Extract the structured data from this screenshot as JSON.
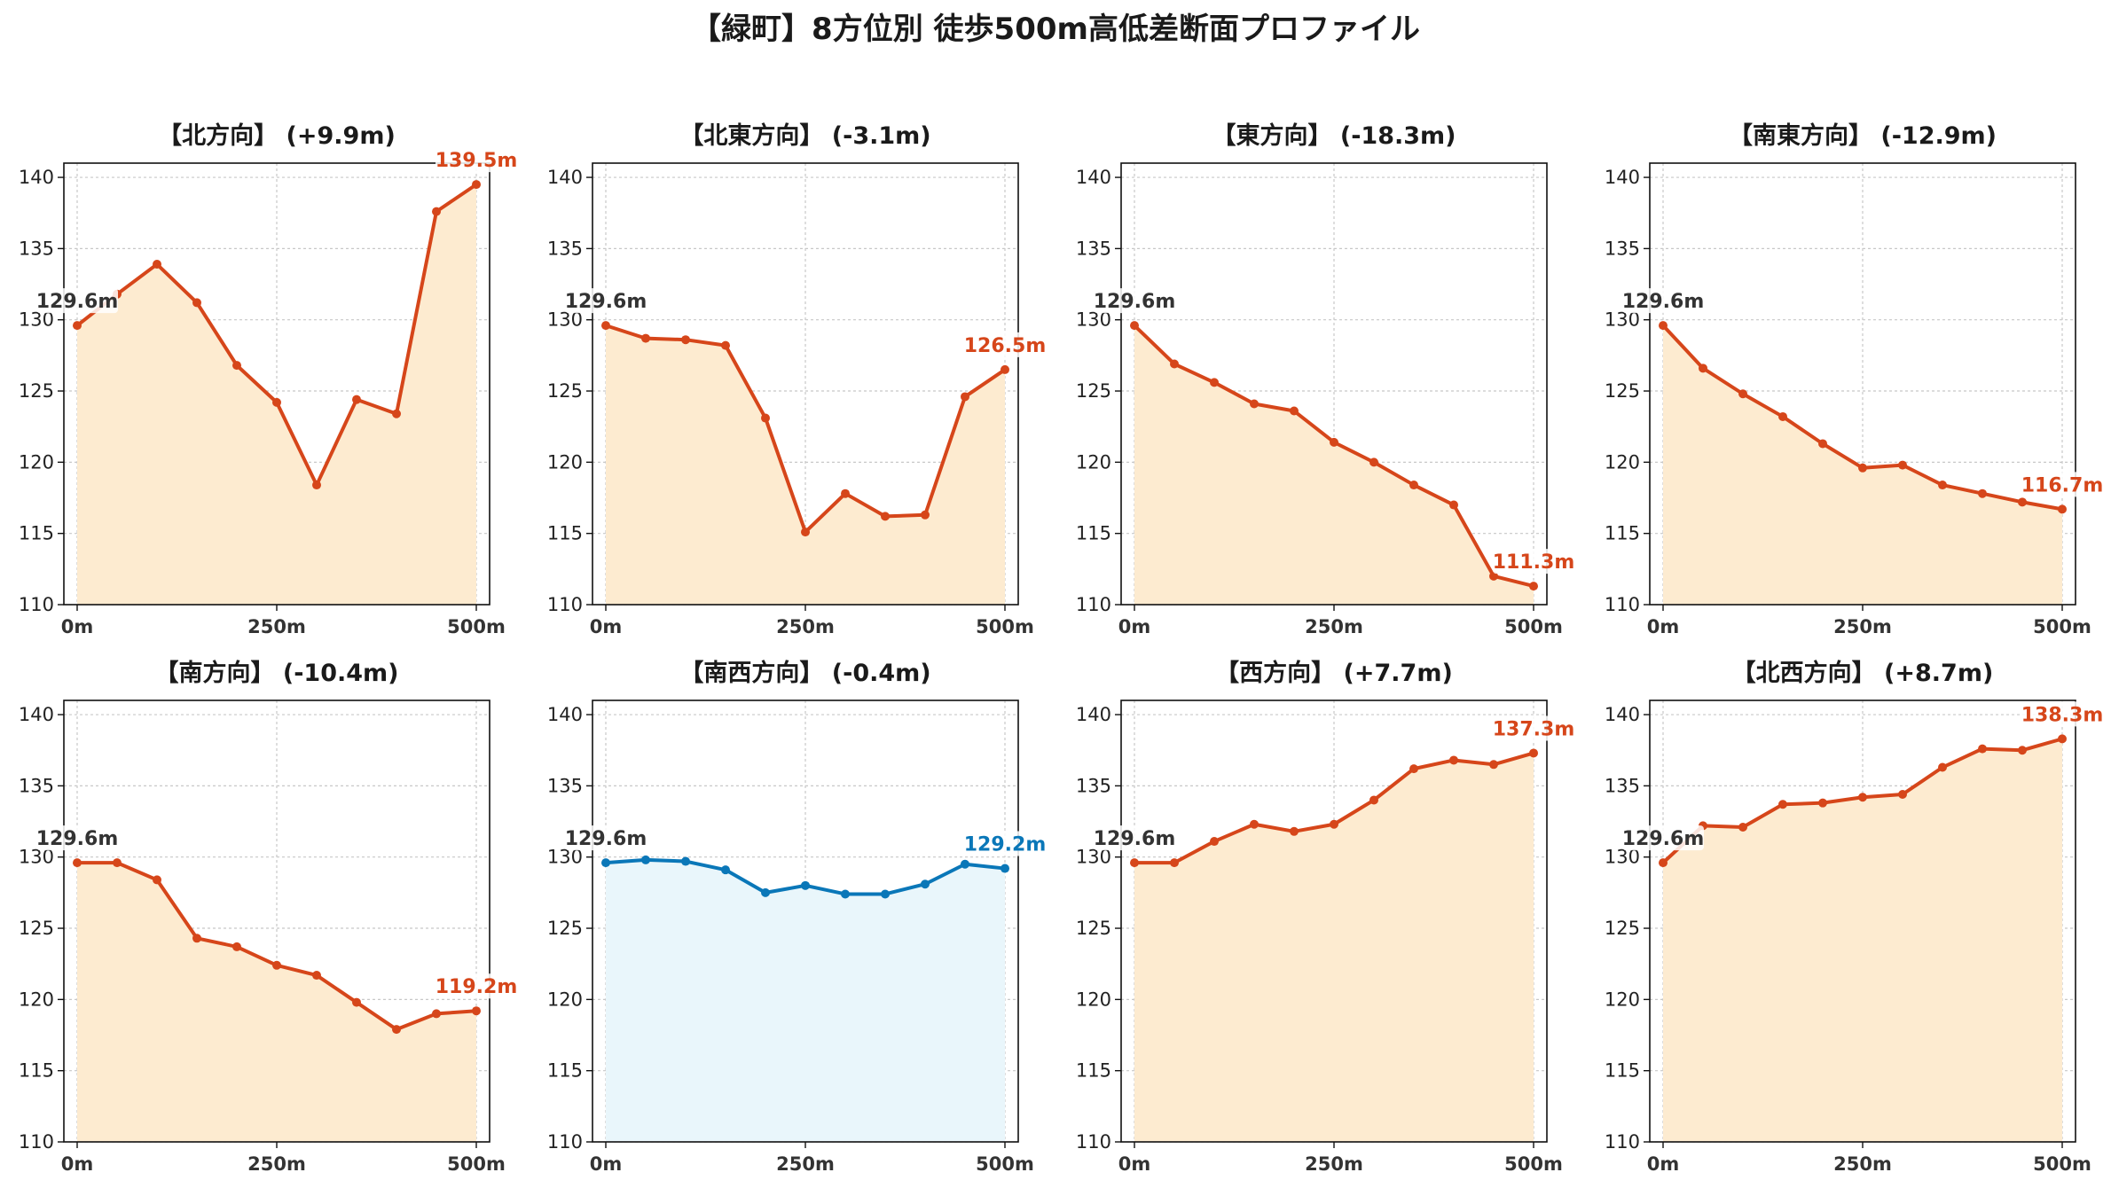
{
  "title": "【緑町】8方位別 徒歩500m高低差断面プロファイル",
  "colors": {
    "line_default": "#d6461a",
    "fill_default": "#fdebd0",
    "line_flat": "#0a77b8",
    "fill_flat": "#e9f6fb",
    "start_label": "#333333",
    "grid": "#c8c8c8"
  },
  "chart_data": [
    {
      "type": "line",
      "title": "【北方向】 (+9.9m)",
      "x": [
        0,
        50,
        100,
        150,
        200,
        250,
        300,
        350,
        400,
        450,
        500
      ],
      "values": [
        129.6,
        131.8,
        133.9,
        131.2,
        126.8,
        124.2,
        118.4,
        124.4,
        123.4,
        137.6,
        139.5
      ],
      "xticks": [
        "0m",
        "250m",
        "500m"
      ],
      "yticks": [
        "110",
        "115",
        "120",
        "125",
        "130",
        "135",
        "140"
      ],
      "ylim": [
        110,
        141
      ],
      "start_label": "129.6m",
      "end_label": "139.5m",
      "grid": true,
      "style": "default"
    },
    {
      "type": "line",
      "title": "【北東方向】 (-3.1m)",
      "x": [
        0,
        50,
        100,
        150,
        200,
        250,
        300,
        350,
        400,
        450,
        500
      ],
      "values": [
        129.6,
        128.7,
        128.6,
        128.2,
        123.1,
        115.1,
        117.8,
        116.2,
        116.3,
        124.6,
        126.5
      ],
      "xticks": [
        "0m",
        "250m",
        "500m"
      ],
      "yticks": [
        "110",
        "115",
        "120",
        "125",
        "130",
        "135",
        "140"
      ],
      "ylim": [
        110,
        141
      ],
      "start_label": "129.6m",
      "end_label": "126.5m",
      "grid": true,
      "style": "default"
    },
    {
      "type": "line",
      "title": "【東方向】 (-18.3m)",
      "x": [
        0,
        50,
        100,
        150,
        200,
        250,
        300,
        350,
        400,
        450,
        500
      ],
      "values": [
        129.6,
        126.9,
        125.6,
        124.1,
        123.6,
        121.4,
        120.0,
        118.4,
        117.0,
        112.0,
        111.3
      ],
      "xticks": [
        "0m",
        "250m",
        "500m"
      ],
      "yticks": [
        "110",
        "115",
        "120",
        "125",
        "130",
        "135",
        "140"
      ],
      "ylim": [
        110,
        141
      ],
      "start_label": "129.6m",
      "end_label": "111.3m",
      "grid": true,
      "style": "default"
    },
    {
      "type": "line",
      "title": "【南東方向】 (-12.9m)",
      "x": [
        0,
        50,
        100,
        150,
        200,
        250,
        300,
        350,
        400,
        450,
        500
      ],
      "values": [
        129.6,
        126.6,
        124.8,
        123.2,
        121.3,
        119.6,
        119.8,
        118.4,
        117.8,
        117.2,
        116.7
      ],
      "xticks": [
        "0m",
        "250m",
        "500m"
      ],
      "yticks": [
        "110",
        "115",
        "120",
        "125",
        "130",
        "135",
        "140"
      ],
      "ylim": [
        110,
        141
      ],
      "start_label": "129.6m",
      "end_label": "116.7m",
      "grid": true,
      "style": "default"
    },
    {
      "type": "line",
      "title": "【南方向】 (-10.4m)",
      "x": [
        0,
        50,
        100,
        150,
        200,
        250,
        300,
        350,
        400,
        450,
        500
      ],
      "values": [
        129.6,
        129.6,
        128.4,
        124.3,
        123.7,
        122.4,
        121.7,
        119.8,
        117.9,
        119.0,
        119.2
      ],
      "xticks": [
        "0m",
        "250m",
        "500m"
      ],
      "yticks": [
        "110",
        "115",
        "120",
        "125",
        "130",
        "135",
        "140"
      ],
      "ylim": [
        110,
        141
      ],
      "start_label": "129.6m",
      "end_label": "119.2m",
      "grid": true,
      "style": "default"
    },
    {
      "type": "line",
      "title": "【南西方向】 (-0.4m)",
      "x": [
        0,
        50,
        100,
        150,
        200,
        250,
        300,
        350,
        400,
        450,
        500
      ],
      "values": [
        129.6,
        129.8,
        129.7,
        129.1,
        127.5,
        128.0,
        127.4,
        127.4,
        128.1,
        129.5,
        129.2
      ],
      "xticks": [
        "0m",
        "250m",
        "500m"
      ],
      "yticks": [
        "110",
        "115",
        "120",
        "125",
        "130",
        "135",
        "140"
      ],
      "ylim": [
        110,
        141
      ],
      "start_label": "129.6m",
      "end_label": "129.2m",
      "grid": true,
      "style": "flat"
    },
    {
      "type": "line",
      "title": "【西方向】 (+7.7m)",
      "x": [
        0,
        50,
        100,
        150,
        200,
        250,
        300,
        350,
        400,
        450,
        500
      ],
      "values": [
        129.6,
        129.6,
        131.1,
        132.3,
        131.8,
        132.3,
        134.0,
        136.2,
        136.8,
        136.5,
        137.3
      ],
      "xticks": [
        "0m",
        "250m",
        "500m"
      ],
      "yticks": [
        "110",
        "115",
        "120",
        "125",
        "130",
        "135",
        "140"
      ],
      "ylim": [
        110,
        141
      ],
      "start_label": "129.6m",
      "end_label": "137.3m",
      "grid": true,
      "style": "default"
    },
    {
      "type": "line",
      "title": "【北西方向】 (+8.7m)",
      "x": [
        0,
        50,
        100,
        150,
        200,
        250,
        300,
        350,
        400,
        450,
        500
      ],
      "values": [
        129.6,
        132.2,
        132.1,
        133.7,
        133.8,
        134.2,
        134.4,
        136.3,
        137.6,
        137.5,
        138.3
      ],
      "xticks": [
        "0m",
        "250m",
        "500m"
      ],
      "yticks": [
        "110",
        "115",
        "120",
        "125",
        "130",
        "135",
        "140"
      ],
      "ylim": [
        110,
        141
      ],
      "start_label": "129.6m",
      "end_label": "138.3m",
      "grid": true,
      "style": "default"
    }
  ]
}
